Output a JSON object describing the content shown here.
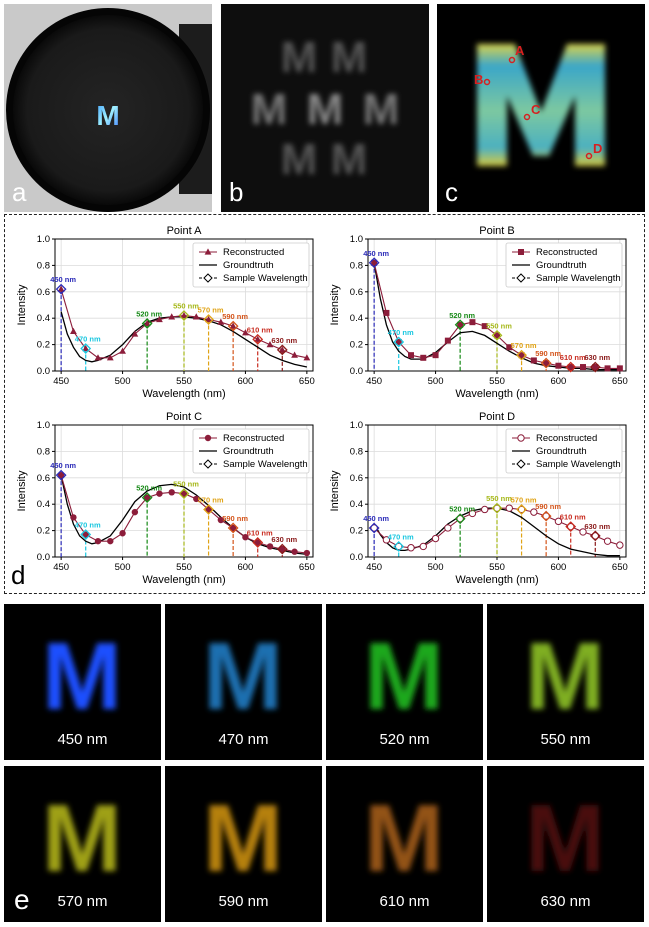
{
  "panel_labels": {
    "a": "a",
    "b": "b",
    "c": "c",
    "d": "d",
    "e": "e"
  },
  "photo": {
    "letter": "M"
  },
  "kaleido": {
    "letter": "M"
  },
  "recon": {
    "letter": "M",
    "points": [
      "A",
      "B",
      "C",
      "D"
    ]
  },
  "chart_data": [
    {
      "type": "line",
      "title": "Point A",
      "xlabel": "Wavelength (nm)",
      "ylabel": "Intensity",
      "xlim": [
        445,
        655
      ],
      "ylim": [
        0,
        1.0
      ],
      "xticks": [
        450,
        500,
        550,
        600,
        650
      ],
      "yticks": [
        0.0,
        0.2,
        0.4,
        0.6,
        0.8,
        1.0
      ],
      "grid": true,
      "legend": "top-right",
      "legend_entries": [
        "Reconstructed",
        "Groundtruth",
        "Sample Wavelength"
      ],
      "reconstructed_marker": "triangle",
      "reconstructed": {
        "x": [
          450,
          460,
          470,
          480,
          490,
          500,
          510,
          520,
          530,
          540,
          550,
          560,
          570,
          580,
          590,
          600,
          610,
          620,
          630,
          640,
          650
        ],
        "y": [
          0.62,
          0.3,
          0.17,
          0.1,
          0.1,
          0.15,
          0.28,
          0.36,
          0.39,
          0.41,
          0.42,
          0.41,
          0.39,
          0.37,
          0.34,
          0.29,
          0.24,
          0.2,
          0.16,
          0.12,
          0.1
        ]
      },
      "groundtruth": {
        "x": [
          450,
          455,
          460,
          465,
          470,
          475,
          480,
          490,
          500,
          510,
          520,
          530,
          540,
          550,
          560,
          570,
          580,
          590,
          600,
          610,
          620,
          630,
          640,
          650
        ],
        "y": [
          0.45,
          0.28,
          0.18,
          0.11,
          0.08,
          0.07,
          0.08,
          0.12,
          0.2,
          0.3,
          0.37,
          0.4,
          0.41,
          0.41,
          0.4,
          0.38,
          0.35,
          0.3,
          0.24,
          0.18,
          0.12,
          0.08,
          0.05,
          0.03
        ]
      },
      "samples": [
        {
          "nm": 450,
          "label": "450 nm",
          "y": 0.62,
          "color": "#2b2bb8"
        },
        {
          "nm": 470,
          "label": "470 nm",
          "y": 0.17,
          "color": "#19c7e0"
        },
        {
          "nm": 520,
          "label": "520 nm",
          "y": 0.36,
          "color": "#178a17"
        },
        {
          "nm": 550,
          "label": "550 nm",
          "y": 0.42,
          "color": "#a6b81a"
        },
        {
          "nm": 570,
          "label": "570 nm",
          "y": 0.39,
          "color": "#e0a316"
        },
        {
          "nm": 590,
          "label": "590 nm",
          "y": 0.34,
          "color": "#d4541a"
        },
        {
          "nm": 610,
          "label": "610 nm",
          "y": 0.24,
          "color": "#c82a1e"
        },
        {
          "nm": 630,
          "label": "630 nm",
          "y": 0.16,
          "color": "#8a1a1a"
        }
      ]
    },
    {
      "type": "line",
      "title": "Point B",
      "xlabel": "Wavelength (nm)",
      "ylabel": "Intensity",
      "xlim": [
        445,
        655
      ],
      "ylim": [
        0,
        1.0
      ],
      "xticks": [
        450,
        500,
        550,
        600,
        650
      ],
      "yticks": [
        0.0,
        0.2,
        0.4,
        0.6,
        0.8,
        1.0
      ],
      "grid": true,
      "legend": "top-right",
      "legend_entries": [
        "Reconstructed",
        "Groundtruth",
        "Sample Wavelength"
      ],
      "reconstructed_marker": "square",
      "reconstructed": {
        "x": [
          450,
          460,
          470,
          480,
          490,
          500,
          510,
          520,
          530,
          540,
          550,
          560,
          570,
          580,
          590,
          600,
          610,
          620,
          630,
          640,
          650
        ],
        "y": [
          0.82,
          0.44,
          0.22,
          0.12,
          0.1,
          0.12,
          0.23,
          0.35,
          0.37,
          0.34,
          0.27,
          0.18,
          0.12,
          0.08,
          0.06,
          0.04,
          0.03,
          0.03,
          0.03,
          0.02,
          0.02
        ]
      },
      "groundtruth": {
        "x": [
          450,
          455,
          460,
          465,
          470,
          475,
          480,
          490,
          500,
          510,
          520,
          530,
          540,
          550,
          560,
          570,
          580,
          590,
          600,
          610,
          620,
          630,
          640,
          650
        ],
        "y": [
          0.82,
          0.55,
          0.35,
          0.22,
          0.15,
          0.11,
          0.09,
          0.09,
          0.14,
          0.22,
          0.29,
          0.3,
          0.27,
          0.21,
          0.15,
          0.1,
          0.06,
          0.04,
          0.03,
          0.02,
          0.02,
          0.01,
          0.01,
          0.01
        ]
      },
      "samples": [
        {
          "nm": 450,
          "label": "450 nm",
          "y": 0.82,
          "color": "#2b2bb8"
        },
        {
          "nm": 470,
          "label": "470 nm",
          "y": 0.22,
          "color": "#19c7e0"
        },
        {
          "nm": 520,
          "label": "520 nm",
          "y": 0.35,
          "color": "#178a17"
        },
        {
          "nm": 550,
          "label": "550 nm",
          "y": 0.27,
          "color": "#a6b81a"
        },
        {
          "nm": 570,
          "label": "570 nm",
          "y": 0.12,
          "color": "#e0a316"
        },
        {
          "nm": 590,
          "label": "590 nm",
          "y": 0.06,
          "color": "#d4541a"
        },
        {
          "nm": 610,
          "label": "610 nm",
          "y": 0.03,
          "color": "#c82a1e"
        },
        {
          "nm": 630,
          "label": "630 nm",
          "y": 0.03,
          "color": "#8a1a1a"
        }
      ]
    },
    {
      "type": "line",
      "title": "Point C",
      "xlabel": "Wavelength (nm)",
      "ylabel": "Intensity",
      "xlim": [
        445,
        655
      ],
      "ylim": [
        0,
        1.0
      ],
      "xticks": [
        450,
        500,
        550,
        600,
        650
      ],
      "yticks": [
        0.0,
        0.2,
        0.4,
        0.6,
        0.8,
        1.0
      ],
      "grid": true,
      "legend": "top-right",
      "legend_entries": [
        "Reconstructed",
        "Groundtruth",
        "Sample Wavelength"
      ],
      "reconstructed_marker": "circle",
      "reconstructed": {
        "x": [
          450,
          460,
          470,
          480,
          490,
          500,
          510,
          520,
          530,
          540,
          550,
          560,
          570,
          580,
          590,
          600,
          610,
          620,
          630,
          640,
          650
        ],
        "y": [
          0.62,
          0.3,
          0.17,
          0.12,
          0.12,
          0.18,
          0.34,
          0.45,
          0.48,
          0.49,
          0.48,
          0.44,
          0.36,
          0.28,
          0.22,
          0.15,
          0.11,
          0.08,
          0.06,
          0.04,
          0.03
        ]
      },
      "groundtruth": {
        "x": [
          450,
          455,
          460,
          465,
          470,
          475,
          480,
          490,
          500,
          510,
          520,
          530,
          540,
          550,
          560,
          570,
          580,
          590,
          600,
          610,
          620,
          630,
          640,
          650
        ],
        "y": [
          0.62,
          0.4,
          0.25,
          0.16,
          0.12,
          0.1,
          0.11,
          0.16,
          0.28,
          0.42,
          0.5,
          0.54,
          0.55,
          0.53,
          0.47,
          0.39,
          0.3,
          0.22,
          0.15,
          0.1,
          0.07,
          0.05,
          0.03,
          0.02
        ]
      },
      "samples": [
        {
          "nm": 450,
          "label": "450 nm",
          "y": 0.62,
          "color": "#2b2bb8"
        },
        {
          "nm": 470,
          "label": "470 nm",
          "y": 0.17,
          "color": "#19c7e0"
        },
        {
          "nm": 520,
          "label": "520 nm",
          "y": 0.45,
          "color": "#178a17"
        },
        {
          "nm": 550,
          "label": "550 nm",
          "y": 0.48,
          "color": "#a6b81a"
        },
        {
          "nm": 570,
          "label": "570 nm",
          "y": 0.36,
          "color": "#e0a316"
        },
        {
          "nm": 590,
          "label": "590 nm",
          "y": 0.22,
          "color": "#d4541a"
        },
        {
          "nm": 610,
          "label": "610 nm",
          "y": 0.11,
          "color": "#c82a1e"
        },
        {
          "nm": 630,
          "label": "630 nm",
          "y": 0.06,
          "color": "#8a1a1a"
        }
      ]
    },
    {
      "type": "line",
      "title": "Point D",
      "xlabel": "Wavelength (nm)",
      "ylabel": "Intensity",
      "xlim": [
        445,
        655
      ],
      "ylim": [
        0,
        1.0
      ],
      "xticks": [
        450,
        500,
        550,
        600,
        650
      ],
      "yticks": [
        0.0,
        0.2,
        0.4,
        0.6,
        0.8,
        1.0
      ],
      "grid": true,
      "legend": "top-right",
      "legend_entries": [
        "Reconstructed",
        "Groundtruth",
        "Sample Wavelength"
      ],
      "reconstructed_marker": "open-circle",
      "reconstructed": {
        "x": [
          450,
          460,
          470,
          480,
          490,
          500,
          510,
          520,
          530,
          540,
          550,
          560,
          570,
          580,
          590,
          600,
          610,
          620,
          630,
          640,
          650
        ],
        "y": [
          0.22,
          0.13,
          0.08,
          0.07,
          0.08,
          0.14,
          0.22,
          0.29,
          0.33,
          0.36,
          0.37,
          0.37,
          0.36,
          0.34,
          0.31,
          0.27,
          0.23,
          0.19,
          0.16,
          0.12,
          0.09
        ]
      },
      "groundtruth": {
        "x": [
          450,
          455,
          460,
          465,
          470,
          475,
          480,
          490,
          500,
          510,
          520,
          530,
          540,
          550,
          560,
          570,
          580,
          590,
          600,
          610,
          620,
          630,
          640,
          650
        ],
        "y": [
          0.25,
          0.17,
          0.11,
          0.07,
          0.05,
          0.05,
          0.06,
          0.09,
          0.16,
          0.25,
          0.31,
          0.35,
          0.37,
          0.37,
          0.35,
          0.3,
          0.23,
          0.16,
          0.1,
          0.06,
          0.04,
          0.02,
          0.01,
          0.01
        ]
      },
      "samples": [
        {
          "nm": 450,
          "label": "450 nm",
          "y": 0.22,
          "color": "#2b2bb8"
        },
        {
          "nm": 470,
          "label": "470 nm",
          "y": 0.08,
          "color": "#19c7e0"
        },
        {
          "nm": 520,
          "label": "520 nm",
          "y": 0.29,
          "color": "#178a17"
        },
        {
          "nm": 550,
          "label": "550 nm",
          "y": 0.37,
          "color": "#a6b81a"
        },
        {
          "nm": 570,
          "label": "570 nm",
          "y": 0.36,
          "color": "#e0a316"
        },
        {
          "nm": 590,
          "label": "590 nm",
          "y": 0.31,
          "color": "#d4541a"
        },
        {
          "nm": 610,
          "label": "610 nm",
          "y": 0.23,
          "color": "#c82a1e"
        },
        {
          "nm": 630,
          "label": "630 nm",
          "y": 0.16,
          "color": "#8a1a1a"
        }
      ]
    }
  ],
  "band_images": [
    {
      "caption": "450 nm",
      "color": "#1f4fff",
      "letter": "M"
    },
    {
      "caption": "470 nm",
      "color": "#1a6fb0",
      "letter": "M"
    },
    {
      "caption": "520 nm",
      "color": "#1fa81f",
      "letter": "M"
    },
    {
      "caption": "550 nm",
      "color": "#7fae22",
      "letter": "M"
    },
    {
      "caption": "570 nm",
      "color": "#9fa019",
      "letter": "M"
    },
    {
      "caption": "590 nm",
      "color": "#b5800f",
      "letter": "M"
    },
    {
      "caption": "610 nm",
      "color": "#935214",
      "letter": "M"
    },
    {
      "caption": "630 nm",
      "color": "#4a0b0b",
      "letter": "M"
    }
  ]
}
